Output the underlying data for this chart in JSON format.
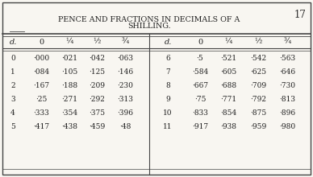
{
  "title_line1": "PENCE AND FRACTIONS IN DECIMALS OF A",
  "title_line2": "SHILLING.",
  "page_number": "17",
  "col_headers_left": [
    "d.",
    "0",
    "¼",
    "½",
    "¾"
  ],
  "col_headers_right": [
    "d.",
    "0",
    "¼",
    "½",
    "¾"
  ],
  "left_data": [
    [
      "0",
      "·000",
      "·021",
      "·042",
      "·063"
    ],
    [
      "1",
      "·084",
      "·105",
      "·125",
      "·146"
    ],
    [
      "2",
      "·167",
      "·188",
      "·209",
      "·230"
    ],
    [
      "3",
      "·25",
      "·271",
      "·292",
      "·313"
    ],
    [
      "4",
      "·333",
      "·354",
      "·375",
      "·396"
    ],
    [
      "5",
      "·417",
      "·438",
      "·459",
      "·48"
    ]
  ],
  "right_data": [
    [
      "6",
      "·5",
      "·521",
      "·542",
      "·563"
    ],
    [
      "7",
      "·584",
      "·605",
      "·625",
      "·646"
    ],
    [
      "8",
      "·667",
      "·688",
      "·709",
      "·730"
    ],
    [
      "9",
      "·75",
      "·771",
      "·792",
      "·813"
    ],
    [
      "10",
      "·833",
      "·854",
      "·875",
      "·896"
    ],
    [
      "11",
      "·917",
      "·938",
      "·959",
      "·980"
    ]
  ],
  "bg_color": "#f8f6f1",
  "border_color": "#444444",
  "text_color": "#222222",
  "title_fontsize": 6.8,
  "header_fontsize": 7.0,
  "cell_fontsize": 6.5,
  "page_num_fontsize": 8.5,
  "fig_width": 3.88,
  "fig_height": 2.2,
  "dpi": 100
}
